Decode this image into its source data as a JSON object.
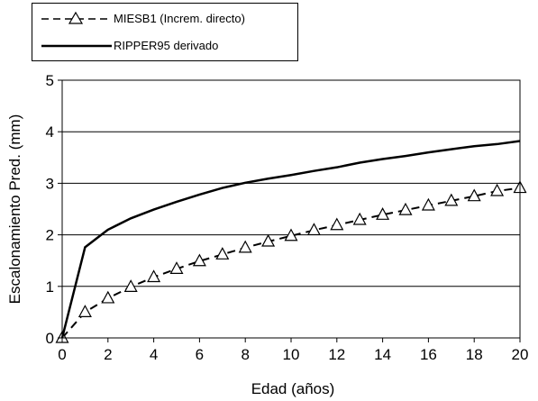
{
  "chart_data": {
    "type": "line",
    "xlabel": "Edad (años)",
    "ylabel": "Escalonamiento Pred. (mm)",
    "xlim": [
      0,
      20
    ],
    "ylim": [
      0,
      5
    ],
    "xticks": [
      "0",
      "2",
      "4",
      "6",
      "8",
      "10",
      "12",
      "14",
      "16",
      "18",
      "20"
    ],
    "yticks": [
      "0",
      "1",
      "2",
      "3",
      "4",
      "5"
    ],
    "grid": "horizontal",
    "legend_position": "top-left",
    "x": [
      0,
      1,
      2,
      3,
      4,
      5,
      6,
      7,
      8,
      9,
      10,
      11,
      12,
      13,
      14,
      15,
      16,
      17,
      18,
      19,
      20
    ],
    "series": [
      {
        "name": "MIESB1 (Increm. directo)",
        "style": "dashed-triangle",
        "color": "#000000",
        "values": [
          0.0,
          0.5,
          0.77,
          0.99,
          1.18,
          1.34,
          1.49,
          1.62,
          1.75,
          1.87,
          1.98,
          2.09,
          2.19,
          2.29,
          2.39,
          2.48,
          2.57,
          2.66,
          2.75,
          2.85,
          2.91
        ]
      },
      {
        "name": "RIPPER95 derivado",
        "style": "solid",
        "color": "#000000",
        "values": [
          0.0,
          1.76,
          2.1,
          2.32,
          2.49,
          2.64,
          2.78,
          2.91,
          3.01,
          3.09,
          3.16,
          3.24,
          3.31,
          3.4,
          3.47,
          3.53,
          3.6,
          3.66,
          3.72,
          3.76,
          3.82
        ]
      }
    ]
  }
}
